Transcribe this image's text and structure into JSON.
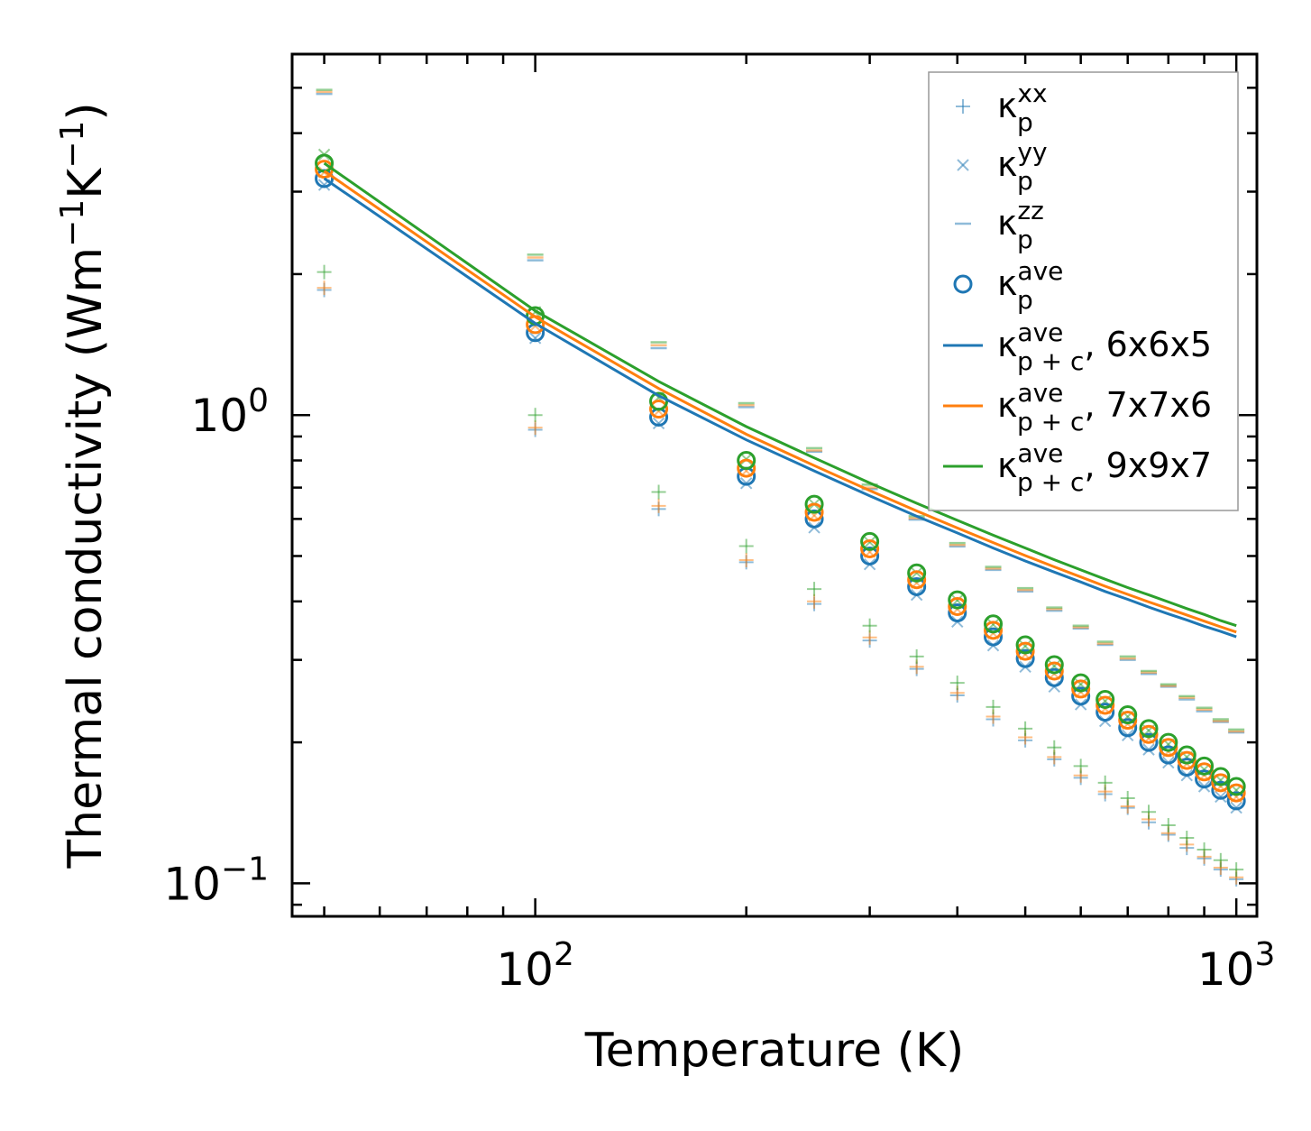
{
  "chart_data": {
    "type": "scatter",
    "xscale": "log",
    "yscale": "log",
    "xlabel": "Temperature (K)",
    "ylabel": "Thermal conductivity (Wm",
    "ylabel_sup1": "−1",
    "ylabel_mid": "K",
    "ylabel_sup2": "−1",
    "ylabel_end": ")",
    "xlim": [
      45,
      1070
    ],
    "ylim": [
      0.085,
      5.9
    ],
    "x_ticks": [
      {
        "value": 100,
        "base": "10",
        "exp": "2"
      },
      {
        "value": 1000,
        "base": "10",
        "exp": "3"
      }
    ],
    "y_ticks": [
      {
        "value": 0.1,
        "base": "10",
        "exp": "−1"
      },
      {
        "value": 1,
        "base": "10",
        "exp": "0"
      }
    ],
    "temperatures": [
      50,
      100,
      150,
      200,
      250,
      300,
      350,
      400,
      450,
      500,
      550,
      600,
      650,
      700,
      750,
      800,
      850,
      900,
      950,
      1000
    ],
    "colors": [
      "#1f77b4",
      "#ff7f0e",
      "#2ca02c"
    ],
    "series": [
      {
        "name": "6x6x5",
        "kappa_xx": [
          1.85,
          0.93,
          0.63,
          0.485,
          0.395,
          0.33,
          0.287,
          0.252,
          0.224,
          0.202,
          0.184,
          0.168,
          0.155,
          0.145,
          0.135,
          0.127,
          0.119,
          0.113,
          0.107,
          0.102
        ],
        "kappa_yy": [
          3.1,
          1.46,
          0.96,
          0.715,
          0.575,
          0.48,
          0.413,
          0.362,
          0.322,
          0.29,
          0.263,
          0.241,
          0.222,
          0.207,
          0.193,
          0.181,
          0.17,
          0.161,
          0.153,
          0.145
        ],
        "kappa_zz": [
          4.85,
          2.14,
          1.39,
          1.04,
          0.835,
          0.695,
          0.598,
          0.524,
          0.467,
          0.42,
          0.382,
          0.35,
          0.323,
          0.3,
          0.28,
          0.263,
          0.247,
          0.233,
          0.221,
          0.21
        ],
        "kappa_ave": [
          3.2,
          1.5,
          0.99,
          0.74,
          0.6,
          0.5,
          0.43,
          0.378,
          0.336,
          0.302,
          0.275,
          0.251,
          0.232,
          0.215,
          0.2,
          0.188,
          0.177,
          0.167,
          0.158,
          0.15
        ],
        "kappa_pc": [
          3.2,
          1.57,
          1.1,
          0.885,
          0.76,
          0.672,
          0.608,
          0.56,
          0.52,
          0.488,
          0.462,
          0.44,
          0.42,
          0.404,
          0.389,
          0.376,
          0.365,
          0.354,
          0.345,
          0.336
        ]
      },
      {
        "name": "7x7x6",
        "kappa_xx": [
          1.87,
          0.94,
          0.64,
          0.49,
          0.4,
          0.335,
          0.29,
          0.255,
          0.227,
          0.205,
          0.186,
          0.17,
          0.157,
          0.146,
          0.137,
          0.128,
          0.121,
          0.114,
          0.108,
          0.103
        ],
        "kappa_yy": [
          3.3,
          1.55,
          1.02,
          0.76,
          0.61,
          0.51,
          0.438,
          0.385,
          0.342,
          0.308,
          0.28,
          0.256,
          0.236,
          0.219,
          0.204,
          0.191,
          0.18,
          0.17,
          0.161,
          0.153
        ],
        "kappa_zz": [
          4.9,
          2.17,
          1.41,
          1.05,
          0.84,
          0.7,
          0.602,
          0.528,
          0.47,
          0.423,
          0.385,
          0.352,
          0.325,
          0.302,
          0.282,
          0.264,
          0.249,
          0.235,
          0.222,
          0.211
        ],
        "kappa_ave": [
          3.35,
          1.56,
          1.03,
          0.77,
          0.62,
          0.518,
          0.445,
          0.39,
          0.347,
          0.313,
          0.284,
          0.26,
          0.24,
          0.223,
          0.208,
          0.195,
          0.183,
          0.173,
          0.164,
          0.156
        ],
        "kappa_pc": [
          3.32,
          1.62,
          1.14,
          0.91,
          0.78,
          0.69,
          0.624,
          0.574,
          0.534,
          0.501,
          0.474,
          0.451,
          0.431,
          0.414,
          0.399,
          0.386,
          0.374,
          0.363,
          0.353,
          0.344
        ]
      },
      {
        "name": "9x9x7",
        "kappa_xx": [
          2.02,
          1.0,
          0.685,
          0.525,
          0.425,
          0.355,
          0.305,
          0.268,
          0.238,
          0.214,
          0.195,
          0.178,
          0.164,
          0.152,
          0.142,
          0.133,
          0.125,
          0.118,
          0.112,
          0.107
        ],
        "kappa_yy": [
          3.6,
          1.66,
          1.09,
          0.805,
          0.645,
          0.535,
          0.46,
          0.402,
          0.357,
          0.321,
          0.291,
          0.266,
          0.245,
          0.227,
          0.212,
          0.198,
          0.186,
          0.175,
          0.166,
          0.158
        ],
        "kappa_zz": [
          4.95,
          2.2,
          1.43,
          1.06,
          0.85,
          0.71,
          0.608,
          0.533,
          0.474,
          0.427,
          0.388,
          0.355,
          0.328,
          0.305,
          0.284,
          0.266,
          0.251,
          0.237,
          0.224,
          0.213
        ],
        "kappa_ave": [
          3.45,
          1.63,
          1.07,
          0.8,
          0.645,
          0.537,
          0.46,
          0.403,
          0.358,
          0.323,
          0.293,
          0.268,
          0.247,
          0.229,
          0.214,
          0.2,
          0.188,
          0.178,
          0.169,
          0.161
        ],
        "kappa_pc": [
          3.45,
          1.67,
          1.18,
          0.945,
          0.81,
          0.716,
          0.648,
          0.596,
          0.554,
          0.52,
          0.491,
          0.467,
          0.446,
          0.428,
          0.413,
          0.399,
          0.386,
          0.375,
          0.364,
          0.355
        ]
      }
    ],
    "legend": {
      "position": "top-right",
      "entries": [
        {
          "marker": "plus",
          "color": "#1f77b4",
          "label": "κ",
          "sub": "p",
          "sup": "xx",
          "suffix": ""
        },
        {
          "marker": "x",
          "color": "#1f77b4",
          "label": "κ",
          "sub": "p",
          "sup": "yy",
          "suffix": ""
        },
        {
          "marker": "hline",
          "color": "#1f77b4",
          "label": "κ",
          "sub": "p",
          "sup": "zz",
          "suffix": ""
        },
        {
          "marker": "circle",
          "color": "#1f77b4",
          "label": "κ",
          "sub": "p",
          "sup": "ave",
          "suffix": ""
        },
        {
          "marker": "line",
          "color": "#1f77b4",
          "label": "κ",
          "sub": "p + c",
          "sup": "ave",
          "suffix": ", 6x6x5"
        },
        {
          "marker": "line",
          "color": "#ff7f0e",
          "label": "κ",
          "sub": "p + c",
          "sup": "ave",
          "suffix": ", 7x7x6"
        },
        {
          "marker": "line",
          "color": "#2ca02c",
          "label": "κ",
          "sub": "p + c",
          "sup": "ave",
          "suffix": ", 9x9x7"
        }
      ]
    }
  }
}
